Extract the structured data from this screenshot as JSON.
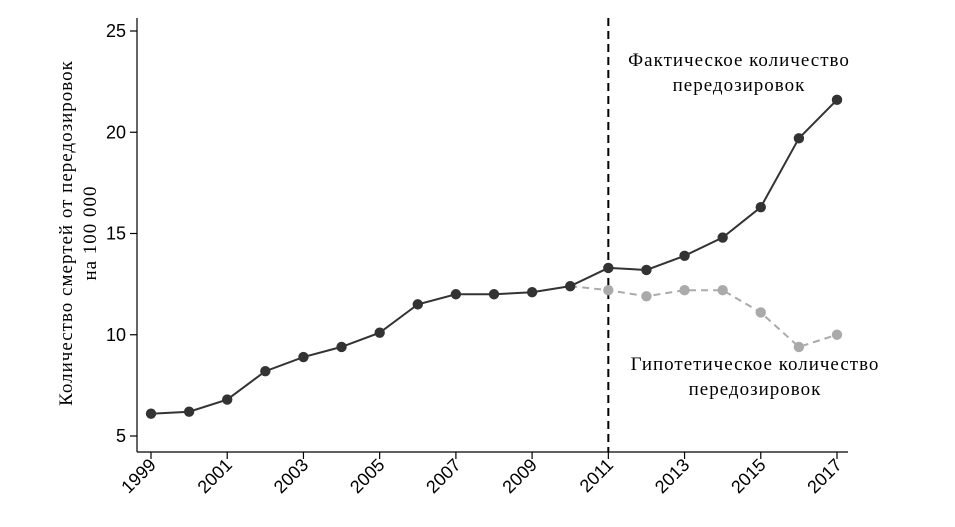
{
  "chart_data": {
    "type": "line",
    "ylabel_line1": "Количество смертей от передозировок",
    "ylabel_line2": "на 100 000",
    "ylim": [
      5,
      25
    ],
    "yticks": [
      5,
      10,
      15,
      20,
      25
    ],
    "xlim": [
      1999,
      2017
    ],
    "xticks": [
      1999,
      2001,
      2003,
      2005,
      2007,
      2009,
      2011,
      2013,
      2015,
      2017
    ],
    "vline_x": 2011,
    "grid": false,
    "annotations": [
      {
        "lines": [
          "Фактическое количество",
          "передозировок"
        ],
        "series": "actual"
      },
      {
        "lines": [
          "Гипотетическое количество",
          "передозировок"
        ],
        "series": "hypothetical"
      }
    ],
    "series": [
      {
        "id": "actual",
        "color": "#333333",
        "style": "solid",
        "x": [
          1999,
          2000,
          2001,
          2002,
          2003,
          2004,
          2005,
          2006,
          2007,
          2008,
          2009,
          2010,
          2011,
          2012,
          2013,
          2014,
          2015,
          2016,
          2017
        ],
        "values": [
          6.1,
          6.2,
          6.8,
          8.2,
          8.9,
          9.4,
          10.1,
          11.5,
          12.0,
          12.0,
          12.1,
          12.4,
          13.3,
          13.2,
          13.9,
          14.8,
          16.3,
          19.7,
          21.6
        ]
      },
      {
        "id": "hypothetical",
        "color": "#aaaaaa",
        "style": "dashed",
        "x": [
          2010,
          2011,
          2012,
          2013,
          2014,
          2015,
          2016,
          2017
        ],
        "values": [
          12.4,
          12.2,
          11.9,
          12.2,
          12.2,
          11.1,
          9.4,
          10.0
        ]
      }
    ]
  }
}
